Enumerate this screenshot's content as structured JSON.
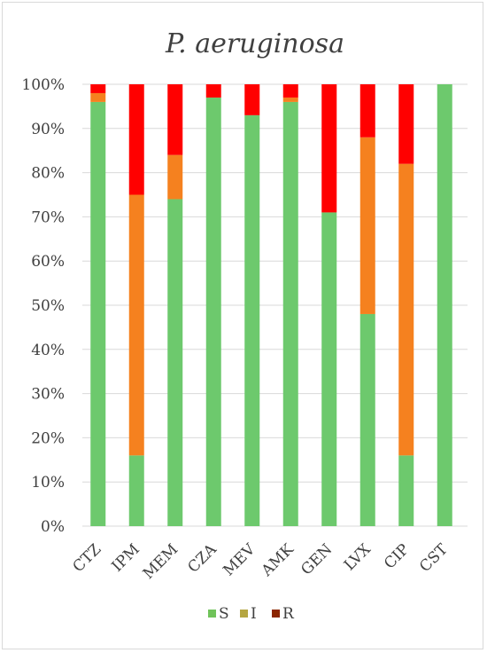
{
  "chart_data": {
    "type": "bar",
    "stacked": true,
    "title": "P. aeruginosa",
    "xlabel": "",
    "ylabel": "",
    "ylim": [
      0,
      100
    ],
    "ytick_values": [
      0,
      10,
      20,
      30,
      40,
      50,
      60,
      70,
      80,
      90,
      100
    ],
    "ytick_labels": [
      "0%",
      "10%",
      "20%",
      "30%",
      "40%",
      "50%",
      "60%",
      "70%",
      "80%",
      "90%",
      "100%"
    ],
    "grid": true,
    "legend_position": "bottom",
    "categories": [
      "CTZ",
      "IPM",
      "MEM",
      "CZA",
      "MEV",
      "AMK",
      "GEN",
      "LVX",
      "CIP",
      "CST"
    ],
    "series": [
      {
        "name": "S",
        "color": "#6dc96d",
        "values": [
          96,
          16,
          74,
          97,
          93,
          96,
          71,
          48,
          16,
          100
        ]
      },
      {
        "name": "I",
        "color": "#f5811f",
        "values": [
          2,
          59,
          10,
          0,
          0,
          1,
          0,
          40,
          66,
          0
        ]
      },
      {
        "name": "R",
        "color": "#ff0000",
        "values": [
          2,
          25,
          16,
          3,
          7,
          3,
          29,
          12,
          18,
          0
        ]
      }
    ],
    "legend": [
      {
        "label": "S",
        "color": "#70c35a"
      },
      {
        "label": "I",
        "color": "#b5a642"
      },
      {
        "label": "R",
        "color": "#8b2500"
      }
    ]
  }
}
